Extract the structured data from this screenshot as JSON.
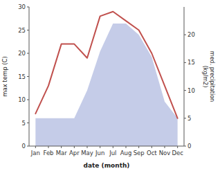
{
  "chart_data": {
    "type": "line",
    "categories": [
      "Jan",
      "Feb",
      "Mar",
      "Apr",
      "May",
      "Jun",
      "Jul",
      "Aug",
      "Sep",
      "Oct",
      "Nov",
      "Dec"
    ],
    "xlabel": "date (month)",
    "ylabel": "max temp (C)",
    "y2label": "med. precipitation\n(kg/m2)",
    "ylim": [
      0,
      30
    ],
    "yticks": [
      0,
      5,
      10,
      15,
      20,
      25,
      30
    ],
    "y2lim": [
      0,
      25
    ],
    "y2ticks": [
      0,
      5,
      10,
      15,
      20
    ],
    "series": [
      {
        "type": "area",
        "axis": "y2",
        "color": "#c5cce8",
        "values": [
          5,
          5,
          5,
          5,
          10,
          17,
          22,
          22,
          20,
          16,
          8,
          5
        ]
      },
      {
        "type": "line",
        "color": "#c0504d",
        "values": [
          7,
          13,
          22,
          22,
          19,
          28,
          29,
          27,
          25,
          20,
          13,
          6
        ]
      }
    ]
  }
}
